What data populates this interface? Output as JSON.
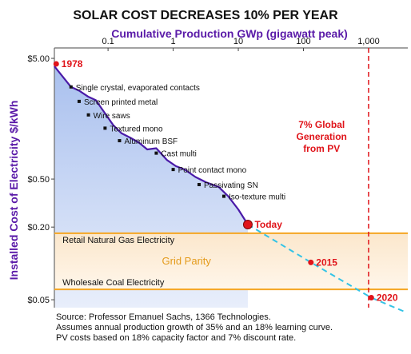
{
  "chart_data": {
    "type": "line",
    "title": "SOLAR COST DECREASES 10% PER YEAR",
    "xlabel": "Cumulative Production GWp (gigawatt peak)",
    "ylabel": "Installed Cost of Electricity $/kWh",
    "x_scale": "log",
    "y_scale": "log",
    "xlim": [
      0.015,
      4000
    ],
    "ylim": [
      0.043,
      6.1
    ],
    "x_ticks": [
      {
        "value": 0.1,
        "label": "0.1"
      },
      {
        "value": 1,
        "label": "1"
      },
      {
        "value": 10,
        "label": "10"
      },
      {
        "value": 100,
        "label": "100"
      },
      {
        "value": 1000,
        "label": "1,000"
      }
    ],
    "y_ticks": [
      {
        "value": 5,
        "label": "$5.00"
      },
      {
        "value": 0.5,
        "label": "$0.50"
      },
      {
        "value": 0.2,
        "label": "$0.20"
      },
      {
        "value": 0.05,
        "label": "$0.05"
      }
    ],
    "series": [
      {
        "name": "",
        "color": "#4a1aa8",
        "values": [
          {
            "x": 0.015,
            "y": 4.3
          },
          {
            "x": 0.027,
            "y": 2.9
          },
          {
            "x": 0.036,
            "y": 2.7
          },
          {
            "x": 0.05,
            "y": 2.4
          },
          {
            "x": 0.065,
            "y": 2.25
          },
          {
            "x": 0.09,
            "y": 1.75
          },
          {
            "x": 0.12,
            "y": 1.4
          },
          {
            "x": 0.16,
            "y": 1.2
          },
          {
            "x": 0.22,
            "y": 1.1
          },
          {
            "x": 0.3,
            "y": 1.0
          },
          {
            "x": 0.4,
            "y": 0.88
          },
          {
            "x": 0.55,
            "y": 0.9
          },
          {
            "x": 0.8,
            "y": 0.72
          },
          {
            "x": 1.1,
            "y": 0.64
          },
          {
            "x": 1.5,
            "y": 0.6
          },
          {
            "x": 2.2,
            "y": 0.52
          },
          {
            "x": 3.2,
            "y": 0.47
          },
          {
            "x": 5,
            "y": 0.43
          },
          {
            "x": 7,
            "y": 0.36
          },
          {
            "x": 10,
            "y": 0.28
          },
          {
            "x": 14,
            "y": 0.21
          }
        ]
      }
    ],
    "projection": {
      "color": "#33c3e6",
      "values": [
        {
          "x": 14,
          "y": 0.21
        },
        {
          "x": 130,
          "y": 0.102
        },
        {
          "x": 1100,
          "y": 0.052
        },
        {
          "x": 3500,
          "y": 0.04
        }
      ]
    },
    "points": [
      {
        "label": "1978",
        "x": 0.016,
        "y": 4.5
      },
      {
        "label": "Today",
        "x": 14,
        "y": 0.21
      },
      {
        "label": "2015",
        "x": 130,
        "y": 0.102
      },
      {
        "label": "2020",
        "x": 1100,
        "y": 0.052
      }
    ],
    "annotations": [
      {
        "text": "Single crystal, evaporated contacts",
        "x": 0.027,
        "y": 2.9
      },
      {
        "text": "Screen printed metal",
        "x": 0.036,
        "y": 2.2
      },
      {
        "text": "Wire saws",
        "x": 0.05,
        "y": 1.7
      },
      {
        "text": "Textured mono",
        "x": 0.09,
        "y": 1.32
      },
      {
        "text": "Aluminum BSF",
        "x": 0.15,
        "y": 1.04
      },
      {
        "text": "Cast multi",
        "x": 0.55,
        "y": 0.82
      },
      {
        "text": "Point contact mono",
        "x": 1.0,
        "y": 0.6
      },
      {
        "text": "Passivating SN",
        "x": 2.5,
        "y": 0.45
      },
      {
        "text": "Iso-texture multi",
        "x": 6.0,
        "y": 0.36
      }
    ],
    "bands": {
      "upper": {
        "label": "Retail Natural Gas Electricity",
        "y": 0.178
      },
      "lower": {
        "label": "Wholesale Coal Electricity",
        "y": 0.061
      },
      "middle_label": "Grid Parity",
      "color": "#f5a623"
    },
    "vertical_line": {
      "x": 1000,
      "label_lines": [
        "7% Global",
        "Generation",
        "from PV"
      ],
      "color": "#e0141a"
    },
    "notes": [
      "Source: Professor Emanuel Sachs, 1366 Technologies.",
      "Assumes annual production growth of 35% and an 18% learning curve.",
      "PV costs based on 18% capacity factor and 7% discount rate."
    ]
  }
}
